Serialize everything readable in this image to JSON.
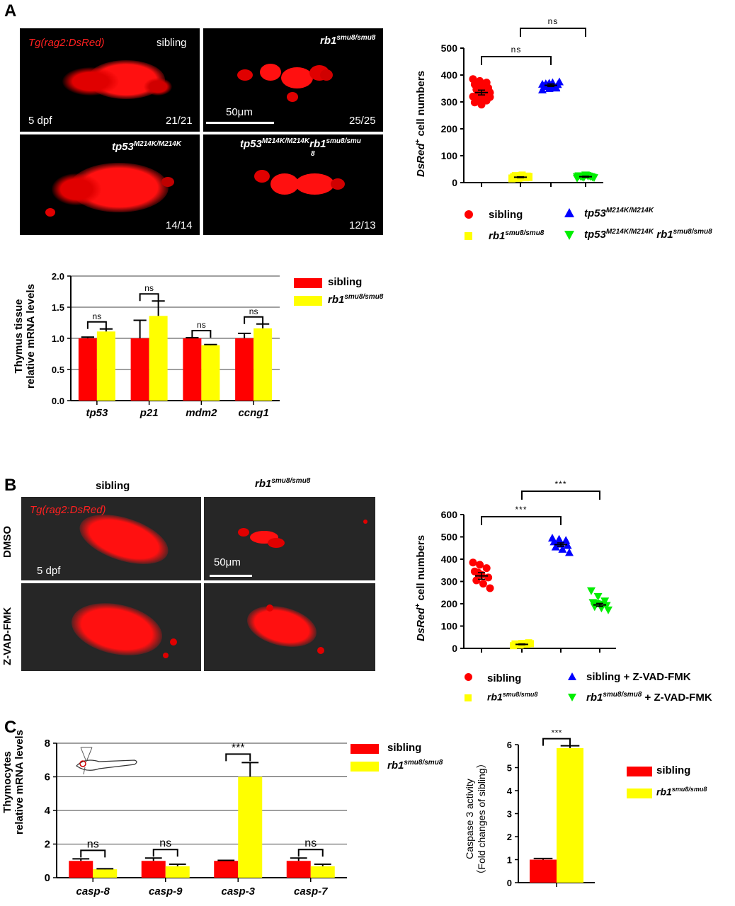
{
  "panels": {
    "a": "A",
    "b": "B",
    "c": "C"
  },
  "micro_a": {
    "tg": "Tg(rag2:DsRed)",
    "sibling": "sibling",
    "rb1": "rb1",
    "rb1_sup": "smu8/smu8",
    "tp53": "tp53",
    "tp53_sup": "M214K/M214K",
    "double_tp53": "tp53",
    "double_tp53_sup": "M214K/M214K",
    "double_rb1": "rb1",
    "double_rb1_sup": "smu8/smu",
    "double_rb1_sup2": "8",
    "dpf": "5 dpf",
    "scale": "50μm",
    "count1": "21/21",
    "count2": "25/25",
    "count3": "14/14",
    "count4": "12/13"
  },
  "micro_b": {
    "col_sibling": "sibling",
    "col_rb1": "rb1",
    "col_rb1_sup": "smu8/smu8",
    "tg": "Tg(rag2:DsRed)",
    "row_dmso": "DMSO",
    "row_zvad": "Z-VAD-FMK",
    "dpf": "5 dpf",
    "scale": "50μm"
  },
  "legend_a": {
    "sibling": "sibling",
    "rb1": "rb1",
    "rb1_sup": "smu8/smu8",
    "tp53": "tp53",
    "tp53_sup": "M214K/M214K",
    "double_tp53": "tp53",
    "double_tp53_sup": "M214K/M214K",
    "double_rb1": "rb1",
    "double_rb1_sup": "smu8/smu8"
  },
  "legend_b": {
    "sibling": "sibling",
    "rb1": "rb1",
    "rb1_sup": "smu8/smu8",
    "sib_zvad": "sibling + Z-VAD-FMK",
    "rb1_zvad_a": "rb1",
    "rb1_zvad_sup": "smu8/smu8",
    "rb1_zvad_b": " + Z-VAD-FMK"
  },
  "chart_data": [
    {
      "id": "scatterA",
      "type": "scatter",
      "ylabel": "DsRed",
      "ylabel_sup": "+",
      "ylabel_rest": " cell numbers",
      "ylim": [
        0,
        500
      ],
      "yticks": [
        0,
        100,
        200,
        300,
        400,
        500
      ],
      "groups": [
        {
          "name": "sibling",
          "color": "#ff0000",
          "marker": "circle",
          "mean": 335,
          "sem": 9,
          "points": [
            385,
            378,
            372,
            365,
            358,
            352,
            346,
            340,
            335,
            330,
            325,
            320,
            312,
            305,
            298,
            290,
            345,
            362,
            328,
            318,
            350
          ]
        },
        {
          "name": "rb1 smu8/smu8",
          "color": "#ffff00",
          "marker": "square",
          "mean": 20,
          "sem": 2,
          "points": [
            14,
            16,
            18,
            20,
            22,
            24,
            26,
            28,
            19,
            21,
            23,
            17,
            25,
            20,
            22,
            18,
            24,
            21,
            19,
            23,
            20,
            22,
            17,
            25,
            21
          ]
        },
        {
          "name": "tp53 M214K/M214K",
          "color": "#0000ff",
          "marker": "triangle-up",
          "mean": 362,
          "sem": 5,
          "points": [
            345,
            350,
            355,
            358,
            362,
            365,
            368,
            372,
            375,
            360,
            356,
            366,
            370,
            352
          ]
        },
        {
          "name": "tp53 M214K/M214K rb1 smu8/smu8",
          "color": "#00ee00",
          "marker": "triangle-down",
          "mean": 22,
          "sem": 2,
          "points": [
            16,
            19,
            22,
            25,
            28,
            20,
            23,
            26,
            18,
            21,
            24,
            22
          ]
        }
      ],
      "brackets": [
        {
          "from": 0,
          "to": 2,
          "label": "ns",
          "level": 1
        },
        {
          "from": 1,
          "to": 3,
          "label": "ns",
          "level": 2
        }
      ]
    },
    {
      "id": "barA",
      "type": "bar",
      "ylabel_line1": "Thymus tissue",
      "ylabel_line2": "relative mRNA levels",
      "ylim": [
        0,
        2.0
      ],
      "yticks": [
        "0.0",
        "0.5",
        "1.0",
        "1.5",
        "2.0"
      ],
      "categories": [
        "tp53",
        "p21",
        "mdm2",
        "ccng1"
      ],
      "series": [
        {
          "name": "sibling",
          "color": "#ff0000",
          "values": [
            1.0,
            1.0,
            1.0,
            1.0
          ],
          "errors": [
            0.02,
            0.29,
            0.01,
            0.08
          ]
        },
        {
          "name": "rb1 smu8/smu8",
          "color": "#ffff00",
          "values": [
            1.11,
            1.36,
            0.89,
            1.16
          ],
          "errors": [
            0.04,
            0.24,
            0.01,
            0.07
          ]
        }
      ],
      "sig": [
        "ns",
        "ns",
        "ns",
        "ns"
      ]
    },
    {
      "id": "scatterB",
      "type": "scatter",
      "ylabel": "DsRed",
      "ylabel_sup": "+",
      "ylabel_rest": " cell numbers",
      "ylim": [
        0,
        600
      ],
      "yticks": [
        0,
        100,
        200,
        300,
        400,
        500,
        600
      ],
      "groups": [
        {
          "name": "sibling",
          "color": "#ff0000",
          "marker": "circle",
          "mean": 325,
          "sem": 15,
          "points": [
            385,
            375,
            360,
            345,
            330,
            318,
            305,
            290,
            270,
            340
          ]
        },
        {
          "name": "rb1 smu8/smu8",
          "color": "#ffff00",
          "marker": "square",
          "mean": 18,
          "sem": 2,
          "points": [
            12,
            15,
            18,
            20,
            22,
            25,
            17,
            19,
            21,
            16
          ]
        },
        {
          "name": "sibling + Z-VAD-FMK",
          "color": "#0000ff",
          "marker": "triangle-up",
          "mean": 465,
          "sem": 8,
          "points": [
            495,
            490,
            485,
            478,
            470,
            462,
            455,
            445,
            430,
            468
          ]
        },
        {
          "name": "rb1 smu8/smu8 + Z-VAD-FMK",
          "color": "#00ee00",
          "marker": "triangle-down",
          "mean": 195,
          "sem": 7,
          "points": [
            258,
            232,
            212,
            205,
            198,
            192,
            186,
            180,
            172,
            200
          ]
        }
      ],
      "brackets": [
        {
          "from": 0,
          "to": 2,
          "label": "***",
          "level": 1
        },
        {
          "from": 1,
          "to": 3,
          "label": "***",
          "level": 2
        }
      ]
    },
    {
      "id": "barC",
      "type": "bar",
      "ylabel_line1": "Thymocytes",
      "ylabel_line2": "relative mRNA levels",
      "ylim": [
        0,
        8
      ],
      "yticks": [
        "0",
        "2",
        "4",
        "6",
        "8"
      ],
      "categories": [
        "casp-8",
        "casp-9",
        "casp-3",
        "casp-7"
      ],
      "series": [
        {
          "name": "sibling",
          "color": "#ff0000",
          "values": [
            1.0,
            1.0,
            1.0,
            1.0
          ],
          "errors": [
            0.12,
            0.17,
            0.03,
            0.17
          ]
        },
        {
          "name": "rb1 smu8/smu8",
          "color": "#ffff00",
          "values": [
            0.5,
            0.68,
            6.0,
            0.68
          ],
          "errors": [
            0.03,
            0.12,
            0.85,
            0.12
          ]
        }
      ],
      "sig": [
        "ns",
        "ns",
        "***",
        "ns"
      ]
    },
    {
      "id": "barC2",
      "type": "bar",
      "ylabel_line1": "Caspase 3 activity",
      "ylabel_line2": "（Fold changes of sibling）",
      "ylim": [
        0,
        6
      ],
      "yticks": [
        "0",
        "1",
        "2",
        "3",
        "4",
        "5",
        "6"
      ],
      "categories": [
        ""
      ],
      "series": [
        {
          "name": "sibling",
          "color": "#ff0000",
          "values": [
            1.0
          ],
          "errors": [
            0.05
          ]
        },
        {
          "name": "rb1 smu8/smu8",
          "color": "#ffff00",
          "values": [
            5.85
          ],
          "errors": [
            0.1
          ]
        }
      ],
      "sig": [
        "***"
      ]
    }
  ],
  "legend_bar": {
    "sibling": "sibling",
    "rb1": "rb1",
    "rb1_sup": "smu8/smu8"
  }
}
